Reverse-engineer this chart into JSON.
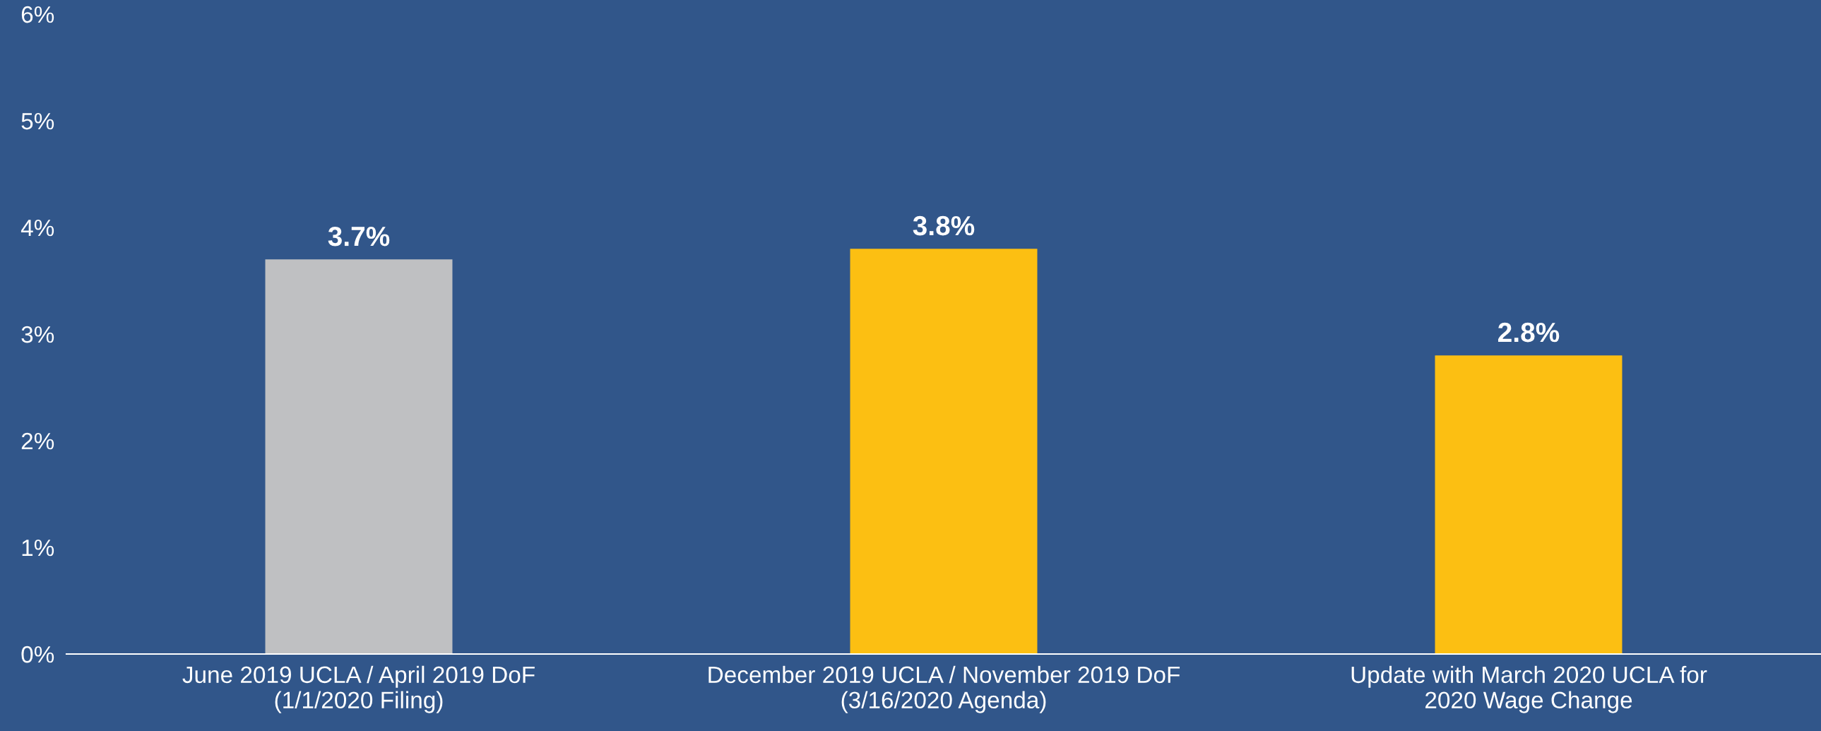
{
  "chart_data": {
    "type": "bar",
    "categories": [
      "June 2019 UCLA / April 2019 DoF\n(1/1/2020 Filing)",
      "December 2019 UCLA / November 2019 DoF\n(3/16/2020 Agenda)",
      "Update with March 2020 UCLA for\n2020 Wage Change"
    ],
    "values": [
      3.7,
      3.8,
      2.8
    ],
    "colors": [
      "#bfc0c2",
      "#fcbf12",
      "#fcbf12"
    ],
    "value_labels": [
      "3.7%",
      "3.8%",
      "2.8%"
    ],
    "ylim": [
      0,
      6
    ],
    "yticks": [
      {
        "value": 0,
        "label": "0%"
      },
      {
        "value": 1,
        "label": "1%"
      },
      {
        "value": 2,
        "label": "2%"
      },
      {
        "value": 3,
        "label": "3%"
      },
      {
        "value": 4,
        "label": "4%"
      },
      {
        "value": 5,
        "label": "5%"
      },
      {
        "value": 6,
        "label": "6%"
      }
    ],
    "grid": false,
    "legend": false
  }
}
